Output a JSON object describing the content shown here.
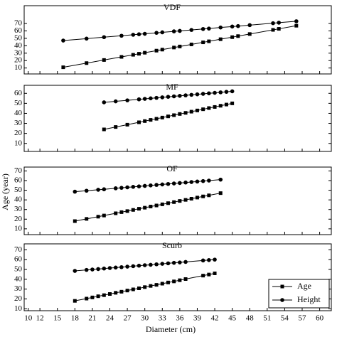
{
  "chart_data": [
    {
      "type": "line",
      "title": "VDF",
      "ylabel": "Age (year)",
      "x": [
        16,
        20,
        23,
        26,
        28,
        29,
        30,
        32,
        33,
        35,
        36,
        38,
        40,
        41,
        43,
        45,
        46,
        48,
        52,
        53,
        56
      ],
      "series": [
        {
          "name": "Age",
          "color": "#000000",
          "marker": "square",
          "values": [
            11,
            16.6,
            20.8,
            25,
            27.8,
            29.2,
            30.6,
            33.4,
            34.8,
            37.6,
            39,
            41.8,
            44.6,
            46,
            48.8,
            51.6,
            53,
            55.8,
            61.4,
            62.8,
            67
          ]
        },
        {
          "name": "Height",
          "color": "#000000",
          "marker": "circle",
          "values": [
            47,
            49.6,
            51.6,
            53.5,
            54.8,
            55.5,
            56.1,
            57.4,
            58.1,
            59.4,
            60,
            61.3,
            62.6,
            63.2,
            64.6,
            65.9,
            66.5,
            67.8,
            70.4,
            71.1,
            73
          ]
        }
      ],
      "xlim": [
        9.3,
        62
      ],
      "ylim": [
        2,
        94
      ],
      "yticks": [
        10,
        20,
        30,
        40,
        50,
        60,
        70
      ]
    },
    {
      "type": "line",
      "title": "MF",
      "x": [
        23,
        25,
        27,
        29,
        30,
        31,
        32,
        33,
        34,
        35,
        36,
        37,
        38,
        39,
        40,
        41,
        42,
        43,
        44,
        45
      ],
      "series": [
        {
          "name": "Age",
          "color": "#000000",
          "marker": "square",
          "values": [
            24,
            26.4,
            28.7,
            31.1,
            32.3,
            33.5,
            34.6,
            35.8,
            37,
            38.2,
            39.4,
            40.5,
            41.7,
            42.9,
            44.1,
            45.3,
            46.4,
            47.6,
            48.8,
            50
          ]
        },
        {
          "name": "Height",
          "color": "#000000",
          "marker": "circle",
          "values": [
            51,
            52,
            53,
            54,
            54.5,
            55,
            55.5,
            56,
            56.5,
            57,
            57.5,
            58,
            58.5,
            59,
            59.5,
            60,
            60.5,
            61,
            61.5,
            62
          ]
        }
      ],
      "xlim": [
        9.3,
        62
      ],
      "ylim": [
        2,
        68
      ],
      "yticks": [
        10,
        20,
        30,
        40,
        50,
        60
      ]
    },
    {
      "type": "line",
      "title": "OF",
      "x": [
        18,
        20,
        22,
        23,
        25,
        26,
        27,
        28,
        29,
        30,
        31,
        32,
        33,
        34,
        35,
        36,
        37,
        38,
        39,
        40,
        41,
        43
      ],
      "series": [
        {
          "name": "Age",
          "color": "#000000",
          "marker": "square",
          "values": [
            18,
            20.3,
            22.6,
            23.8,
            26.1,
            27.3,
            28.4,
            29.6,
            30.8,
            31.9,
            33.1,
            34.2,
            35.4,
            36.6,
            37.7,
            38.9,
            40,
            41.2,
            42.4,
            43.6,
            44.7,
            47
          ]
        },
        {
          "name": "Height",
          "color": "#000000",
          "marker": "circle",
          "values": [
            48.5,
            49.5,
            50.5,
            51,
            52,
            52.5,
            53,
            53.5,
            54,
            54.5,
            55,
            55.5,
            56,
            56.5,
            57,
            57.5,
            58,
            58.5,
            59,
            59.5,
            60,
            61
          ]
        }
      ],
      "xlim": [
        9.3,
        62
      ],
      "ylim": [
        4,
        74
      ],
      "yticks": [
        10,
        20,
        30,
        40,
        50,
        60,
        70
      ]
    },
    {
      "type": "line",
      "title": "Scurb",
      "xlabel": "Diameter (cm)",
      "legend": "lower right",
      "x": [
        18,
        20,
        21,
        22,
        23,
        24,
        25,
        26,
        27,
        28,
        29,
        30,
        31,
        32,
        33,
        34,
        35,
        36,
        37,
        40,
        41,
        42
      ],
      "series": [
        {
          "name": "Age",
          "color": "#000000",
          "marker": "square",
          "values": [
            18,
            20.3,
            21.5,
            22.7,
            23.8,
            25,
            26.2,
            27.3,
            28.5,
            29.7,
            30.8,
            32,
            33.2,
            34.3,
            35.5,
            36.7,
            37.8,
            39,
            40.2,
            43.7,
            44.8,
            46
          ]
        },
        {
          "name": "Height",
          "color": "#000000",
          "marker": "circle",
          "values": [
            48.5,
            49.5,
            49.9,
            50.4,
            50.9,
            51.4,
            51.9,
            52.3,
            52.8,
            53.3,
            53.8,
            54.3,
            54.7,
            55.2,
            55.7,
            56.2,
            56.7,
            57.1,
            57.6,
            59.1,
            59.5,
            60
          ]
        }
      ],
      "xlim": [
        9.3,
        62
      ],
      "ylim": [
        8,
        76
      ],
      "yticks": [
        10,
        20,
        30,
        40,
        50,
        60,
        70
      ],
      "xticks": [
        10,
        12,
        15,
        18,
        21,
        24,
        27,
        30,
        33,
        36,
        39,
        42,
        45,
        48,
        51,
        54,
        57,
        60
      ]
    }
  ]
}
